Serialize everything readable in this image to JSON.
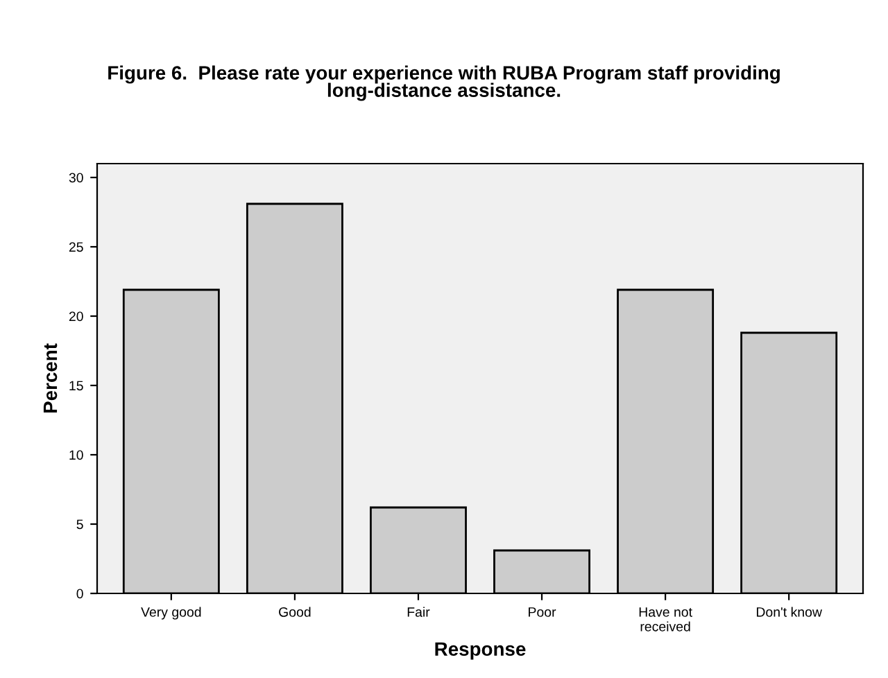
{
  "chart_data": {
    "type": "bar",
    "title": "Figure 6.  Please rate your experience with RUBA Program staff providing\nlong-distance assistance.",
    "xlabel": "Response",
    "ylabel": "Percent",
    "categories": [
      "Very good",
      "Good",
      "Fair",
      "Poor",
      "Have not\nreceived",
      "Don't know"
    ],
    "values": [
      21.9,
      28.1,
      6.2,
      3.1,
      21.9,
      18.8
    ],
    "color": "#cccccc",
    "ylim": [
      0,
      31
    ],
    "yticks": [
      0,
      5,
      10,
      15,
      20,
      25,
      30
    ],
    "grid": false
  }
}
